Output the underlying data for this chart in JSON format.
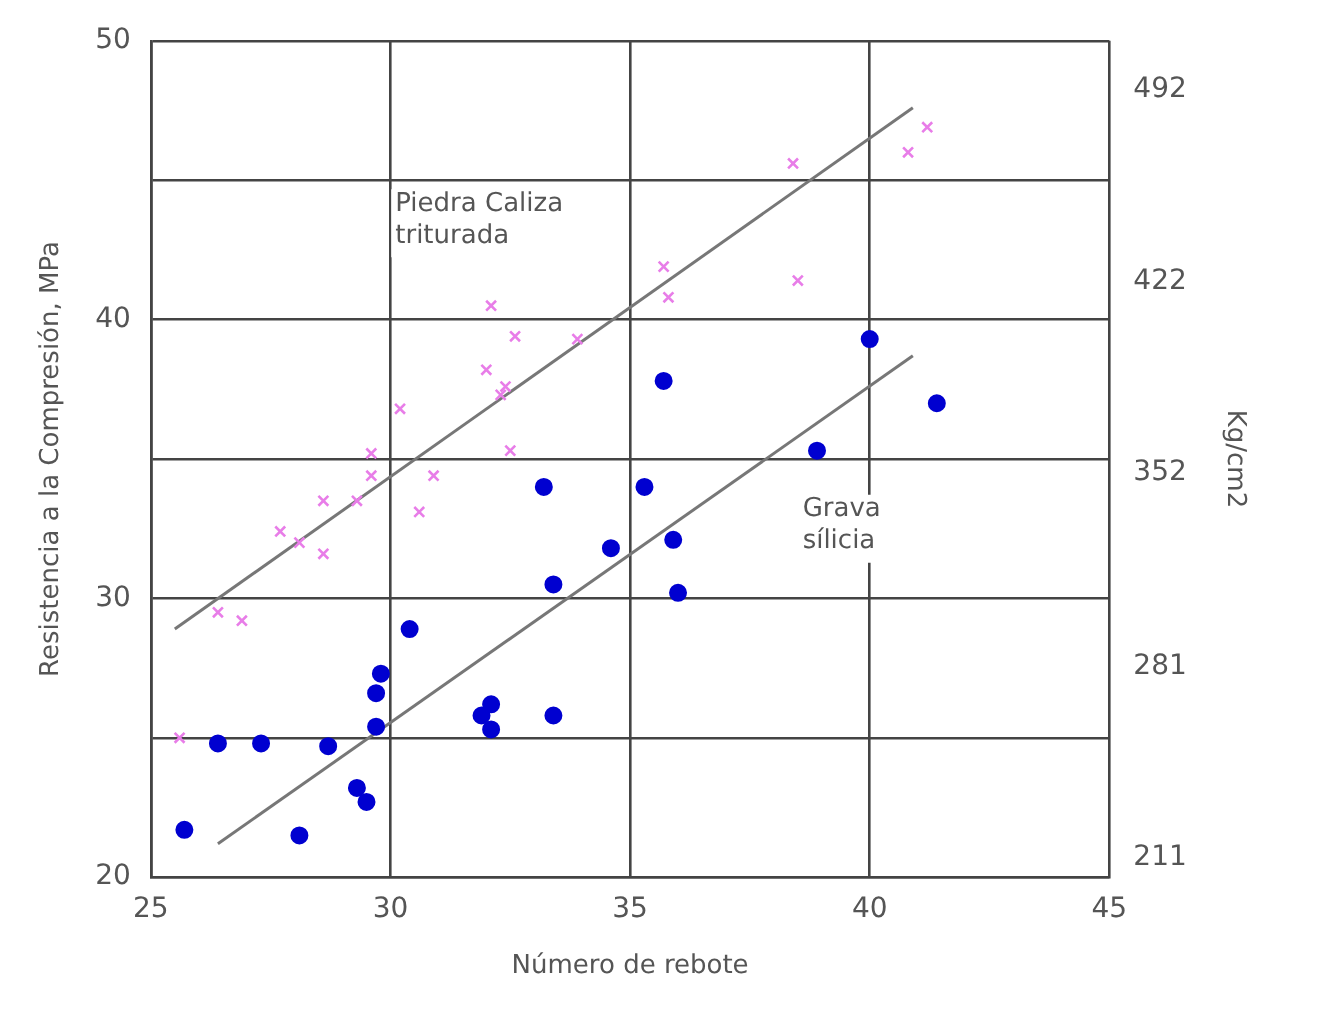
{
  "chart_data": {
    "type": "scatter",
    "xlabel": "Número de rebote",
    "ylabel": "Resistencia a la Compresión, MPa",
    "y2label": "Kg/cm2",
    "xlim": [
      25,
      45
    ],
    "xticks": [
      25,
      30,
      35,
      40,
      45
    ],
    "ylim": [
      20,
      50
    ],
    "yticks": [
      20,
      {
        "value": 25,
        "label": null
      },
      30,
      {
        "value": 35,
        "label": null
      },
      40,
      {
        "value": 45,
        "label": null
      },
      50
    ],
    "y2lim": [
      204,
      510
    ],
    "y2ticks": [
      211,
      281,
      352,
      422,
      492
    ],
    "grid": true,
    "legend": false,
    "series": [
      {
        "marker": "cross",
        "color": "#e87de8",
        "x": [
          25.6,
          26.4,
          26.9,
          27.7,
          28.1,
          28.6,
          28.6,
          29.3,
          29.6,
          29.6,
          30.2,
          30.6,
          30.9,
          32.0,
          32.1,
          32.3,
          32.4,
          32.5,
          32.6,
          33.9,
          35.7,
          35.8,
          38.5,
          38.4,
          40.8,
          41.2
        ],
        "values": [
          25.0,
          29.5,
          29.2,
          32.4,
          32.0,
          31.6,
          33.5,
          33.5,
          35.2,
          34.4,
          36.8,
          33.1,
          34.4,
          38.2,
          40.5,
          37.3,
          37.6,
          35.3,
          39.4,
          39.3,
          41.9,
          40.8,
          41.4,
          45.6,
          46.0,
          46.9
        ]
      },
      {
        "marker": "circle",
        "color": "#0000d0",
        "x": [
          25.7,
          26.4,
          27.3,
          28.1,
          28.7,
          29.3,
          29.5,
          29.7,
          29.7,
          29.8,
          30.4,
          31.9,
          32.1,
          32.1,
          33.2,
          33.4,
          33.4,
          34.6,
          35.3,
          35.9,
          36.0,
          35.7,
          38.9,
          40.0,
          41.4
        ],
        "values": [
          21.7,
          24.8,
          24.8,
          21.5,
          24.7,
          23.2,
          22.7,
          25.4,
          26.6,
          27.3,
          28.9,
          25.8,
          25.3,
          26.2,
          34.0,
          30.5,
          25.8,
          31.8,
          34.0,
          32.1,
          30.2,
          37.8,
          35.3,
          39.3,
          37.0
        ]
      },
      {
        "type": "line",
        "marker": "none",
        "color": "#777777",
        "x": [
          25.5,
          40.9
        ],
        "values": [
          28.9,
          47.6
        ]
      },
      {
        "type": "line",
        "marker": "none",
        "color": "#777777",
        "x": [
          26.4,
          40.9
        ],
        "values": [
          21.2,
          38.7
        ]
      }
    ],
    "annotations": [
      "Piedra Caliza\ntriturada",
      "Grava\nsílicia"
    ]
  }
}
